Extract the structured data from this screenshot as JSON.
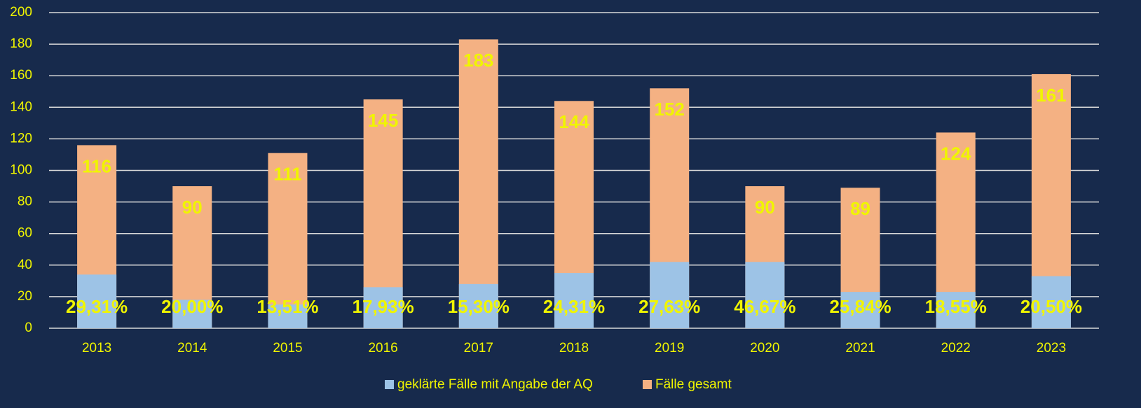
{
  "chart_data": {
    "type": "bar",
    "overlap": true,
    "categories": [
      "2013",
      "2014",
      "2015",
      "2016",
      "2017",
      "2018",
      "2019",
      "2020",
      "2021",
      "2022",
      "2023"
    ],
    "series": [
      {
        "name": "geklärte Fälle mit Angabe der AQ",
        "color": "#9dc3e6",
        "values": [
          34,
          18,
          15,
          26,
          28,
          35,
          42,
          42,
          23,
          23,
          33
        ]
      },
      {
        "name": "Fälle gesamt",
        "color": "#f4b183",
        "values": [
          116,
          90,
          111,
          145,
          183,
          144,
          152,
          90,
          89,
          124,
          161
        ]
      }
    ],
    "share_labels": [
      "29,31%",
      "20,00%",
      "13,51%",
      "17,93%",
      "15,30%",
      "24,31%",
      "27,63%",
      "46,67%",
      "25,84%",
      "18,55%",
      "20,50%"
    ],
    "ylim": [
      0,
      200
    ],
    "yticks": [
      0,
      20,
      40,
      60,
      80,
      100,
      120,
      140,
      160,
      180,
      200
    ],
    "grid": true,
    "legend": "bottom"
  }
}
